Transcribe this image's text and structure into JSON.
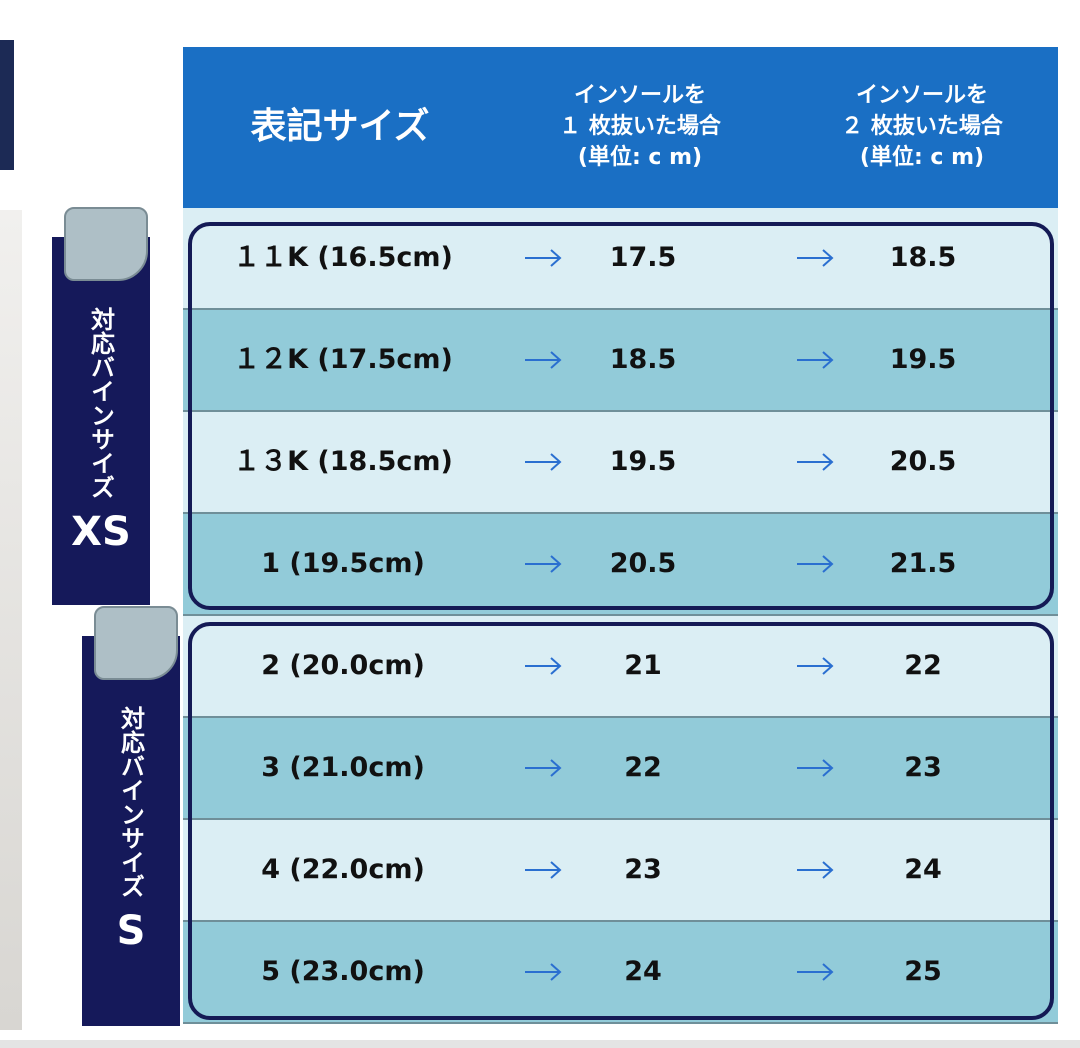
{
  "header": {
    "columns": [
      {
        "lines": [
          "表記サイズ"
        ]
      },
      {
        "lines": [
          "インソールを",
          "１ 枚抜いた場合",
          "(単位: c m)"
        ]
      },
      {
        "lines": [
          "インソールを",
          "２ 枚抜いた場合",
          "(単位: c m)"
        ]
      }
    ]
  },
  "groups": [
    {
      "caption": "対応バインサイズ",
      "size": "XS"
    },
    {
      "caption": "対応バインサイズ",
      "size": "S"
    }
  ],
  "table": {
    "rows": [
      [
        "１１K (16.5cm)",
        "17.5",
        "18.5"
      ],
      [
        "１２K (17.5cm)",
        "18.5",
        "19.5"
      ],
      [
        "１３K (18.5cm)",
        "19.5",
        "20.5"
      ],
      [
        "1 (19.5cm)",
        "20.5",
        "21.5"
      ],
      [
        "2 (20.0cm)",
        "21",
        "22"
      ],
      [
        "3 (21.0cm)",
        "22",
        "23"
      ],
      [
        "4 (22.0cm)",
        "23",
        "24"
      ],
      [
        "5 (23.0cm)",
        "24",
        "25"
      ]
    ]
  }
}
